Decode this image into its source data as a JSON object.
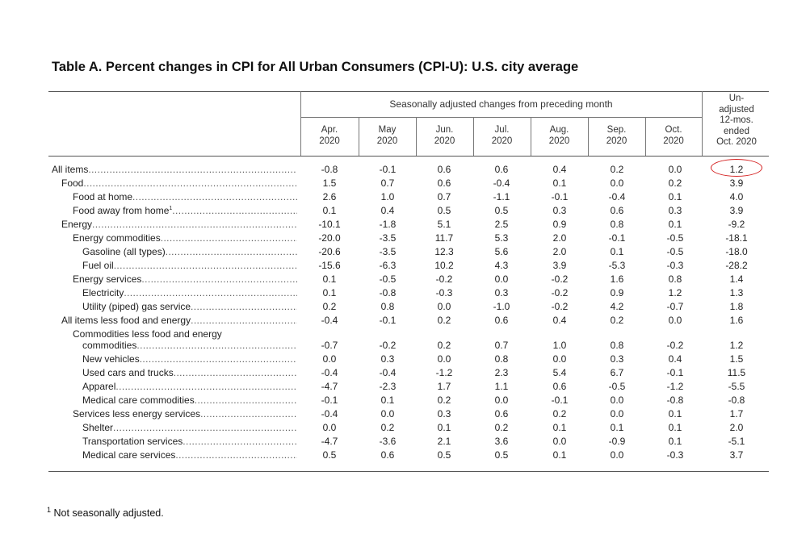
{
  "title": "Table A. Percent changes in CPI for All Urban Consumers (CPI-U): U.S. city average",
  "group_header": "Seasonally adjusted changes from preceding month",
  "columns": [
    {
      "line1": "Apr.",
      "line2": "2020"
    },
    {
      "line1": "May",
      "line2": "2020"
    },
    {
      "line1": "Jun.",
      "line2": "2020"
    },
    {
      "line1": "Jul.",
      "line2": "2020"
    },
    {
      "line1": "Aug.",
      "line2": "2020"
    },
    {
      "line1": "Sep.",
      "line2": "2020"
    },
    {
      "line1": "Oct.",
      "line2": "2020"
    }
  ],
  "unadjusted_header": [
    "Un-",
    "adjusted",
    "12-mos.",
    "ended",
    "Oct. 2020"
  ],
  "rows": [
    {
      "label": "All items",
      "indent": 0,
      "values": [
        "-0.8",
        "-0.1",
        "0.6",
        "0.6",
        "0.4",
        "0.2",
        "0.0",
        "1.2"
      ]
    },
    {
      "label": "Food",
      "indent": 1,
      "values": [
        "1.5",
        "0.7",
        "0.6",
        "-0.4",
        "0.1",
        "0.0",
        "0.2",
        "3.9"
      ]
    },
    {
      "label": "Food at home",
      "indent": 2,
      "values": [
        "2.6",
        "1.0",
        "0.7",
        "-1.1",
        "-0.1",
        "-0.4",
        "0.1",
        "4.0"
      ]
    },
    {
      "label": "Food away from home",
      "footnote": "1",
      "indent": 2,
      "values": [
        "0.1",
        "0.4",
        "0.5",
        "0.5",
        "0.3",
        "0.6",
        "0.3",
        "3.9"
      ]
    },
    {
      "label": "Energy",
      "indent": 1,
      "values": [
        "-10.1",
        "-1.8",
        "5.1",
        "2.5",
        "0.9",
        "0.8",
        "0.1",
        "-9.2"
      ]
    },
    {
      "label": "Energy commodities",
      "indent": 2,
      "values": [
        "-20.0",
        "-3.5",
        "11.7",
        "5.3",
        "2.0",
        "-0.1",
        "-0.5",
        "-18.1"
      ]
    },
    {
      "label": "Gasoline (all types)",
      "indent": 3,
      "values": [
        "-20.6",
        "-3.5",
        "12.3",
        "5.6",
        "2.0",
        "0.1",
        "-0.5",
        "-18.0"
      ]
    },
    {
      "label": "Fuel oil",
      "indent": 3,
      "values": [
        "-15.6",
        "-6.3",
        "10.2",
        "4.3",
        "3.9",
        "-5.3",
        "-0.3",
        "-28.2"
      ]
    },
    {
      "label": "Energy services",
      "indent": 2,
      "values": [
        "0.1",
        "-0.5",
        "-0.2",
        "0.0",
        "-0.2",
        "1.6",
        "0.8",
        "1.4"
      ]
    },
    {
      "label": "Electricity",
      "indent": 3,
      "values": [
        "0.1",
        "-0.8",
        "-0.3",
        "0.3",
        "-0.2",
        "0.9",
        "1.2",
        "1.3"
      ]
    },
    {
      "label": "Utility (piped) gas service",
      "indent": 3,
      "values": [
        "0.2",
        "0.8",
        "0.0",
        "-1.0",
        "-0.2",
        "4.2",
        "-0.7",
        "1.8"
      ]
    },
    {
      "label": "All items less food and energy",
      "indent": 1,
      "values": [
        "-0.4",
        "-0.1",
        "0.2",
        "0.6",
        "0.4",
        "0.2",
        "0.0",
        "1.6"
      ]
    },
    {
      "label": "Commodities less food and energy",
      "indent": 2,
      "heading_only": true,
      "values": []
    },
    {
      "label": "commodities",
      "indent": 3,
      "values": [
        "-0.7",
        "-0.2",
        "0.2",
        "0.7",
        "1.0",
        "0.8",
        "-0.2",
        "1.2"
      ]
    },
    {
      "label": "New vehicles",
      "indent": 3,
      "values": [
        "0.0",
        "0.3",
        "0.0",
        "0.8",
        "0.0",
        "0.3",
        "0.4",
        "1.5"
      ]
    },
    {
      "label": "Used cars and trucks",
      "indent": 3,
      "values": [
        "-0.4",
        "-0.4",
        "-1.2",
        "2.3",
        "5.4",
        "6.7",
        "-0.1",
        "11.5"
      ]
    },
    {
      "label": "Apparel",
      "indent": 3,
      "values": [
        "-4.7",
        "-2.3",
        "1.7",
        "1.1",
        "0.6",
        "-0.5",
        "-1.2",
        "-5.5"
      ]
    },
    {
      "label": "Medical care commodities",
      "indent": 3,
      "values": [
        "-0.1",
        "0.1",
        "0.2",
        "0.0",
        "-0.1",
        "0.0",
        "-0.8",
        "-0.8"
      ]
    },
    {
      "label": "Services less energy services",
      "indent": 2,
      "values": [
        "-0.4",
        "0.0",
        "0.3",
        "0.6",
        "0.2",
        "0.0",
        "0.1",
        "1.7"
      ]
    },
    {
      "label": "Shelter",
      "indent": 3,
      "values": [
        "0.0",
        "0.2",
        "0.1",
        "0.2",
        "0.1",
        "0.1",
        "0.1",
        "2.0"
      ]
    },
    {
      "label": "Transportation services",
      "indent": 3,
      "values": [
        "-4.7",
        "-3.6",
        "2.1",
        "3.6",
        "0.0",
        "-0.9",
        "0.1",
        "-5.1"
      ]
    },
    {
      "label": "Medical care services",
      "indent": 3,
      "values": [
        "0.5",
        "0.6",
        "0.5",
        "0.5",
        "0.1",
        "0.0",
        "-0.3",
        "3.7"
      ]
    }
  ],
  "highlight": {
    "row": "All items",
    "column": "Un-adjusted 12-mos. ended Oct. 2020",
    "color": "#d42020"
  },
  "footnote": {
    "marker": "1",
    "text": "Not seasonally adjusted."
  }
}
